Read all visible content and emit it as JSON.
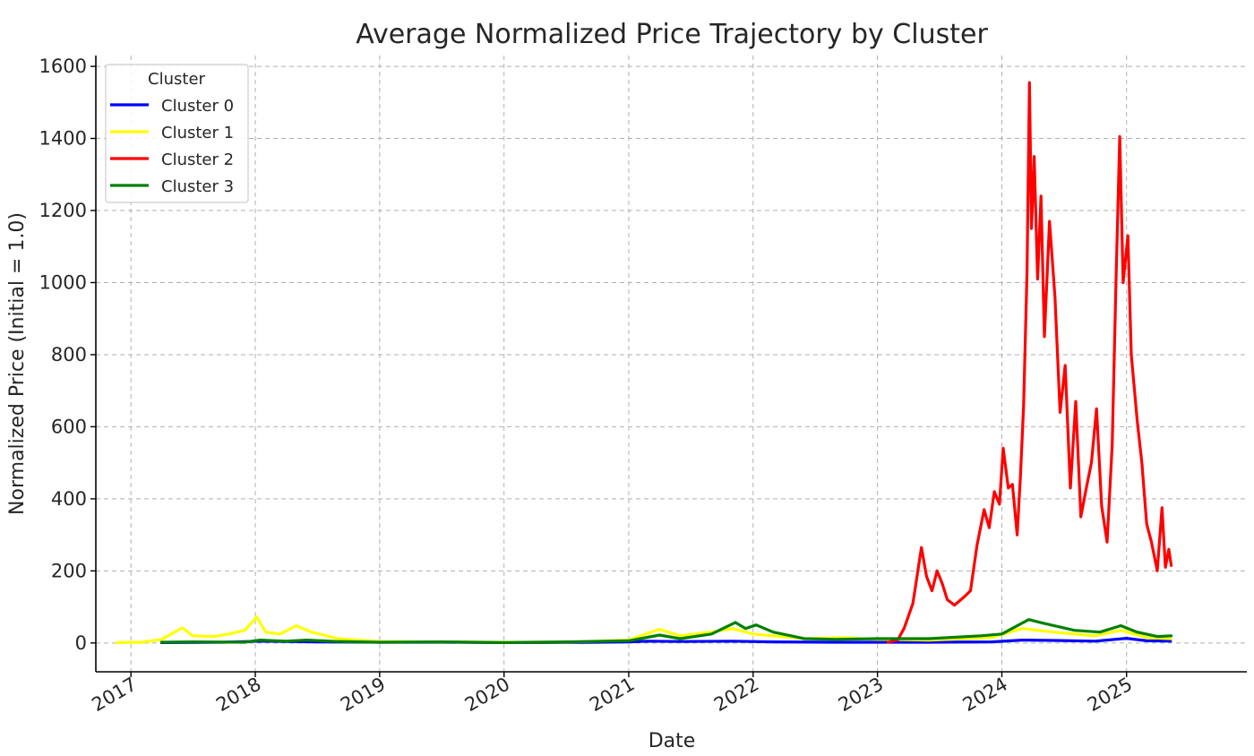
{
  "chart_data": {
    "type": "line",
    "title": "Average Normalized Price Trajectory by Cluster",
    "xlabel": "Date",
    "ylabel": "Normalized Price (Initial = 1.0)",
    "xlim": [
      "2016-09-20",
      "2025-12-20"
    ],
    "ylim": [
      -80,
      1630
    ],
    "x_ticks": [
      {
        "date": "2017-01-01",
        "label": "2017"
      },
      {
        "date": "2018-01-01",
        "label": "2018"
      },
      {
        "date": "2019-01-01",
        "label": "2019"
      },
      {
        "date": "2020-01-01",
        "label": "2020"
      },
      {
        "date": "2021-01-01",
        "label": "2021"
      },
      {
        "date": "2022-01-01",
        "label": "2022"
      },
      {
        "date": "2023-01-01",
        "label": "2023"
      },
      {
        "date": "2024-01-01",
        "label": "2024"
      },
      {
        "date": "2025-01-01",
        "label": "2025"
      }
    ],
    "y_ticks": [
      0,
      200,
      400,
      600,
      800,
      1000,
      1200,
      1400,
      1600
    ],
    "grid": true,
    "legend": {
      "title": "Cluster",
      "placement": "top-left"
    },
    "series": [
      {
        "name": "Cluster 0",
        "color": "#0000ff",
        "points": [
          [
            "2017-04-01",
            1
          ],
          [
            "2017-10-01",
            2
          ],
          [
            "2018-01-15",
            5
          ],
          [
            "2018-07-01",
            3
          ],
          [
            "2019-01-01",
            2
          ],
          [
            "2019-07-01",
            2
          ],
          [
            "2020-01-01",
            1
          ],
          [
            "2020-07-01",
            1
          ],
          [
            "2021-01-01",
            3
          ],
          [
            "2021-03-01",
            5
          ],
          [
            "2021-06-01",
            4
          ],
          [
            "2021-11-01",
            5
          ],
          [
            "2022-03-01",
            3
          ],
          [
            "2022-09-01",
            2
          ],
          [
            "2023-01-01",
            2
          ],
          [
            "2023-06-01",
            2
          ],
          [
            "2023-12-01",
            3
          ],
          [
            "2024-03-01",
            8
          ],
          [
            "2024-06-01",
            7
          ],
          [
            "2024-10-01",
            5
          ],
          [
            "2025-01-01",
            13
          ],
          [
            "2025-03-01",
            6
          ],
          [
            "2025-05-10",
            5
          ]
        ]
      },
      {
        "name": "Cluster 1",
        "color": "#ffff00",
        "points": [
          [
            "2016-11-20",
            1
          ],
          [
            "2017-02-01",
            2
          ],
          [
            "2017-04-01",
            10
          ],
          [
            "2017-06-01",
            42
          ],
          [
            "2017-07-01",
            20
          ],
          [
            "2017-09-01",
            18
          ],
          [
            "2017-10-15",
            25
          ],
          [
            "2017-12-01",
            35
          ],
          [
            "2018-01-05",
            72
          ],
          [
            "2018-02-01",
            30
          ],
          [
            "2018-03-15",
            25
          ],
          [
            "2018-05-01",
            48
          ],
          [
            "2018-06-15",
            30
          ],
          [
            "2018-09-01",
            12
          ],
          [
            "2019-01-01",
            4
          ],
          [
            "2019-07-01",
            3
          ],
          [
            "2020-01-01",
            2
          ],
          [
            "2020-07-01",
            2
          ],
          [
            "2021-01-01",
            8
          ],
          [
            "2021-04-01",
            38
          ],
          [
            "2021-06-01",
            20
          ],
          [
            "2021-09-01",
            30
          ],
          [
            "2021-11-01",
            40
          ],
          [
            "2022-01-01",
            25
          ],
          [
            "2022-06-01",
            12
          ],
          [
            "2022-10-01",
            15
          ],
          [
            "2023-01-01",
            10
          ],
          [
            "2023-06-01",
            8
          ],
          [
            "2023-12-01",
            15
          ],
          [
            "2024-03-01",
            40
          ],
          [
            "2024-06-01",
            30
          ],
          [
            "2024-10-01",
            20
          ],
          [
            "2024-12-15",
            35
          ],
          [
            "2025-03-01",
            15
          ],
          [
            "2025-05-10",
            12
          ]
        ]
      },
      {
        "name": "Cluster 2",
        "color": "#ff0000",
        "points": [
          [
            "2023-02-01",
            2
          ],
          [
            "2023-03-01",
            8
          ],
          [
            "2023-03-20",
            40
          ],
          [
            "2023-04-15",
            110
          ],
          [
            "2023-05-10",
            265
          ],
          [
            "2023-05-25",
            185
          ],
          [
            "2023-06-10",
            145
          ],
          [
            "2023-06-25",
            200
          ],
          [
            "2023-07-10",
            165
          ],
          [
            "2023-07-25",
            120
          ],
          [
            "2023-08-15",
            105
          ],
          [
            "2023-09-15",
            130
          ],
          [
            "2023-10-01",
            145
          ],
          [
            "2023-10-20",
            270
          ],
          [
            "2023-11-10",
            370
          ],
          [
            "2023-11-25",
            320
          ],
          [
            "2023-12-10",
            420
          ],
          [
            "2023-12-25",
            385
          ],
          [
            "2024-01-05",
            540
          ],
          [
            "2024-01-20",
            430
          ],
          [
            "2024-02-01",
            440
          ],
          [
            "2024-02-15",
            300
          ],
          [
            "2024-02-25",
            470
          ],
          [
            "2024-03-05",
            660
          ],
          [
            "2024-03-15",
            1030
          ],
          [
            "2024-03-22",
            1555
          ],
          [
            "2024-03-28",
            1150
          ],
          [
            "2024-04-05",
            1350
          ],
          [
            "2024-04-15",
            1010
          ],
          [
            "2024-04-25",
            1240
          ],
          [
            "2024-05-05",
            850
          ],
          [
            "2024-05-20",
            1170
          ],
          [
            "2024-06-05",
            960
          ],
          [
            "2024-06-20",
            640
          ],
          [
            "2024-07-05",
            770
          ],
          [
            "2024-07-20",
            430
          ],
          [
            "2024-08-05",
            670
          ],
          [
            "2024-08-20",
            350
          ],
          [
            "2024-09-05",
            430
          ],
          [
            "2024-09-20",
            500
          ],
          [
            "2024-10-05",
            650
          ],
          [
            "2024-10-20",
            380
          ],
          [
            "2024-11-05",
            280
          ],
          [
            "2024-11-20",
            550
          ],
          [
            "2024-12-01",
            1000
          ],
          [
            "2024-12-12",
            1405
          ],
          [
            "2024-12-22",
            1000
          ],
          [
            "2025-01-05",
            1130
          ],
          [
            "2025-01-15",
            800
          ],
          [
            "2025-02-01",
            620
          ],
          [
            "2025-02-15",
            500
          ],
          [
            "2025-03-01",
            330
          ],
          [
            "2025-03-15",
            280
          ],
          [
            "2025-04-01",
            200
          ],
          [
            "2025-04-15",
            375
          ],
          [
            "2025-04-25",
            210
          ],
          [
            "2025-05-05",
            260
          ],
          [
            "2025-05-12",
            215
          ]
        ]
      },
      {
        "name": "Cluster 3",
        "color": "#008000",
        "points": [
          [
            "2017-04-01",
            2
          ],
          [
            "2017-07-01",
            3
          ],
          [
            "2017-12-01",
            2
          ],
          [
            "2018-01-15",
            8
          ],
          [
            "2018-04-01",
            5
          ],
          [
            "2018-06-01",
            8
          ],
          [
            "2018-09-01",
            4
          ],
          [
            "2019-01-01",
            2
          ],
          [
            "2019-07-01",
            3
          ],
          [
            "2020-01-01",
            1
          ],
          [
            "2020-07-01",
            3
          ],
          [
            "2021-01-01",
            6
          ],
          [
            "2021-04-01",
            22
          ],
          [
            "2021-06-01",
            12
          ],
          [
            "2021-09-01",
            25
          ],
          [
            "2021-11-10",
            57
          ],
          [
            "2021-12-10",
            40
          ],
          [
            "2022-01-10",
            50
          ],
          [
            "2022-03-01",
            30
          ],
          [
            "2022-06-01",
            12
          ],
          [
            "2022-09-01",
            10
          ],
          [
            "2023-01-01",
            12
          ],
          [
            "2023-06-01",
            12
          ],
          [
            "2023-11-01",
            20
          ],
          [
            "2024-01-01",
            25
          ],
          [
            "2024-03-20",
            65
          ],
          [
            "2024-05-01",
            55
          ],
          [
            "2024-08-01",
            35
          ],
          [
            "2024-10-15",
            30
          ],
          [
            "2024-12-15",
            48
          ],
          [
            "2025-02-01",
            30
          ],
          [
            "2025-04-01",
            18
          ],
          [
            "2025-05-12",
            20
          ]
        ]
      }
    ]
  }
}
